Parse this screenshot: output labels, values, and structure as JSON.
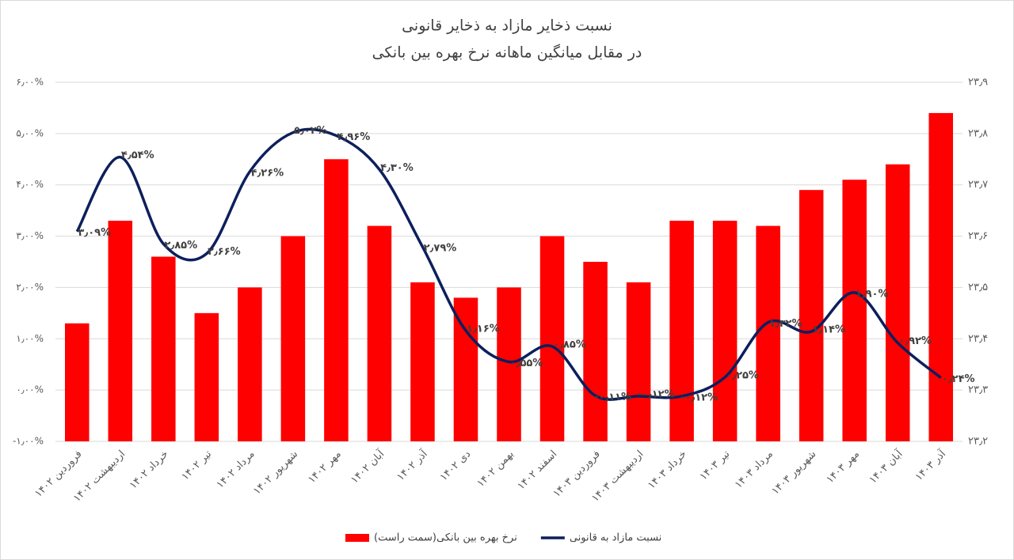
{
  "chart_data": {
    "type": "combo",
    "title": "نسبت ذخایر مازاد به ذخایر قانونی",
    "subtitle": "در مقابل میانگین ماهانه نرخ بهره بین بانکی",
    "categories": [
      "فروردین ۱۴۰۲",
      "اردیبهشت ۱۴۰۲",
      "خرداد ۱۴۰۲",
      "تیر ۱۴۰۲",
      "مرداد ۱۴۰۲",
      "شهریور ۱۴۰۲",
      "مهر ۱۴۰۲",
      "آبان ۱۴۰۲",
      "آذر ۱۴۰۲",
      "دی ۱۴۰۲",
      "بهمن ۱۴۰۲",
      "اسفند ۱۴۰۲",
      "فروردین ۱۴۰۳",
      "اردیبهشت ۱۴۰۳",
      "خرداد ۱۴۰۳",
      "تیر ۱۴۰۳",
      "مرداد ۱۴۰۳",
      "شهریور ۱۴۰۳",
      "مهر ۱۴۰۳",
      "آبان ۱۴۰۳",
      "آذر ۱۴۰۳"
    ],
    "series": [
      {
        "name": "نرخ بهره بین بانکی(سمت راست)",
        "type": "bar",
        "axis": "y2",
        "color": "#ff0000",
        "values": [
          23.43,
          23.63,
          23.56,
          23.45,
          23.5,
          23.6,
          23.75,
          23.62,
          23.51,
          23.48,
          23.5,
          23.6,
          23.55,
          23.51,
          23.63,
          23.63,
          23.62,
          23.69,
          23.71,
          23.74,
          23.84
        ]
      },
      {
        "name": "نسبت مازاد به قانونی",
        "type": "line",
        "axis": "y",
        "color": "#0d1f5c",
        "values": [
          3.09,
          4.54,
          2.85,
          2.66,
          4.26,
          5.02,
          4.96,
          4.3,
          2.79,
          1.16,
          0.55,
          0.85,
          -0.11,
          -0.12,
          -0.12,
          0.25,
          1.32,
          1.14,
          1.9,
          0.92,
          0.24
        ],
        "value_labels": [
          "۳٫۰۹%",
          "۴٫۵۴%",
          "۲٫۸۵%",
          "۲٫۶۶%",
          "۴٫۲۶%",
          "۵٫۰۲%",
          "۴٫۹۶%",
          "۴٫۳۰%",
          "۲٫۷۹%",
          "۱٫۱۶%",
          "۰٫۵۵%",
          "۰٫۸۵%",
          "-۰٫۱۱%",
          "-۰٫۱۲%",
          "-۰٫۱۲%",
          "۰٫۲۵%",
          "۱٫۳۲%",
          "۱٫۱۴%",
          "۱٫۹۰%",
          "۰٫۹۲%",
          "۰٫۲۴%"
        ]
      }
    ],
    "ylim": [
      -1,
      6
    ],
    "yticks": [
      {
        "value": -1,
        "label": "-۱٫۰۰%"
      },
      {
        "value": 0,
        "label": "۰٫۰۰%"
      },
      {
        "value": 1,
        "label": "۱٫۰۰%"
      },
      {
        "value": 2,
        "label": "۲٫۰۰%"
      },
      {
        "value": 3,
        "label": "۳٫۰۰%"
      },
      {
        "value": 4,
        "label": "۴٫۰۰%"
      },
      {
        "value": 5,
        "label": "۵٫۰۰%"
      },
      {
        "value": 6,
        "label": "۶٫۰۰%"
      }
    ],
    "y2lim": [
      23.2,
      23.9
    ],
    "y2ticks": [
      {
        "value": 23.2,
        "label": "۲۳٫۲"
      },
      {
        "value": 23.3,
        "label": "۲۳٫۳"
      },
      {
        "value": 23.4,
        "label": "۲۳٫۴"
      },
      {
        "value": 23.5,
        "label": "۲۳٫۵"
      },
      {
        "value": 23.6,
        "label": "۲۳٫۶"
      },
      {
        "value": 23.7,
        "label": "۲۳٫۷"
      },
      {
        "value": 23.8,
        "label": "۲۳٫۸"
      },
      {
        "value": 23.9,
        "label": "۲۳٫۹"
      }
    ],
    "grid": true,
    "legend": "bottom"
  }
}
